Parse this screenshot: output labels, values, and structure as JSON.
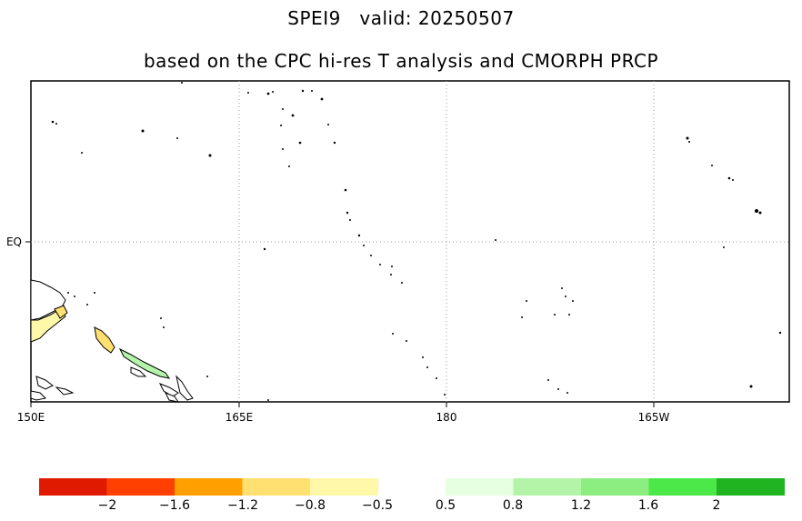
{
  "title": "SPEI9   valid: 20250507",
  "subtitle": "based on the CPC hi-res T analysis and CMORPH PRCP",
  "map": {
    "lon_labels": [
      "150E",
      "165E",
      "180",
      "165W"
    ],
    "lat_labels": [
      "EQ"
    ]
  },
  "colorbar": {
    "dry_colors": [
      "#e01a00",
      "#ff4000",
      "#ffa000",
      "#ffe070",
      "#fff8a8"
    ],
    "wet_colors": [
      "#e6ffe0",
      "#b4f4a8",
      "#8ced80",
      "#4ce84a",
      "#20b420"
    ],
    "labels": [
      "−2",
      "−1.6",
      "−1.2",
      "−0.8",
      "−0.5",
      "0.5",
      "0.8",
      "1.2",
      "1.6",
      "2"
    ]
  }
}
